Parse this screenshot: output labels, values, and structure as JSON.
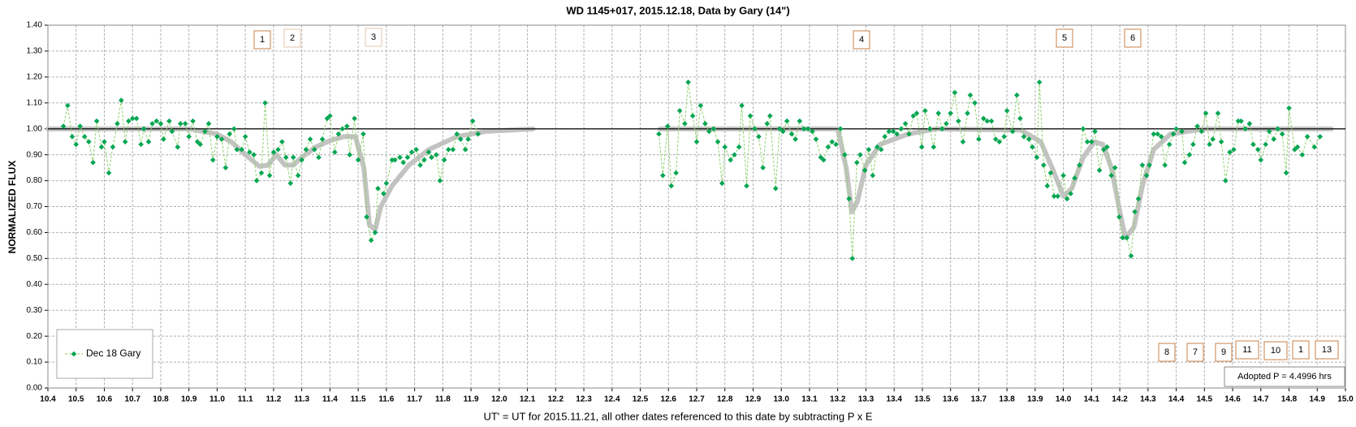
{
  "chart_data": {
    "type": "line",
    "title": "WD 1145+017, 2015.12.18, Data by Gary (14\")",
    "x_label": "UT' = UT for 2015.11.21, all other dates referenced to this date by subtracting P x E",
    "y_label": "NORMALIZED FLUX",
    "xlim": [
      10.4,
      15.0
    ],
    "ylim": [
      0,
      1.4
    ],
    "xticks": [
      10.4,
      10.5,
      10.6,
      10.7,
      10.8,
      10.9,
      {
        "value": 11,
        "label": "11.0"
      },
      11.1,
      11.2,
      11.3,
      11.4,
      11.5,
      11.6,
      11.7,
      11.8,
      11.9,
      {
        "value": 12,
        "label": "12.0"
      },
      12.1,
      12.2,
      12.3,
      12.4,
      12.5,
      12.6,
      12.7,
      12.8,
      12.9,
      {
        "value": 13,
        "label": "13.0"
      },
      13.1,
      13.2,
      13.3,
      13.4,
      13.5,
      13.6,
      13.7,
      13.8,
      13.9,
      {
        "value": 14,
        "label": "14.0"
      },
      14.1,
      14.2,
      14.3,
      14.4,
      14.5,
      14.6,
      14.7,
      14.8,
      14.9,
      {
        "value": 15,
        "label": "15.0"
      }
    ],
    "yticks": [
      {
        "value": 0,
        "label": "0.00"
      },
      {
        "value": 0.1,
        "label": "0.10"
      },
      {
        "value": 0.2,
        "label": "0.20"
      },
      {
        "value": 0.3,
        "label": "0.30"
      },
      {
        "value": 0.4,
        "label": "0.40"
      },
      {
        "value": 0.5,
        "label": "0.50"
      },
      {
        "value": 0.6,
        "label": "0.60"
      },
      {
        "value": 0.7,
        "label": "0.70"
      },
      {
        "value": 0.8,
        "label": "0.80"
      },
      {
        "value": 0.9,
        "label": "0.90"
      },
      {
        "value": 1,
        "label": "1.00"
      },
      {
        "value": 1.1,
        "label": "1.10"
      },
      {
        "value": 1.2,
        "label": "1.20"
      },
      {
        "value": 1.3,
        "label": "1.30"
      },
      {
        "value": 1.4,
        "label": "1.40"
      }
    ],
    "grid": true,
    "reference_line": 1,
    "legend": "bottom-left",
    "x": [
      10.455,
      10.47,
      10.486,
      10.5,
      10.514,
      10.53,
      10.545,
      10.56,
      10.573,
      10.59,
      10.6,
      10.616,
      10.63,
      10.646,
      10.66,
      10.674,
      10.686,
      10.7,
      10.714,
      10.73,
      10.74,
      10.757,
      10.77,
      10.785,
      10.8,
      10.81,
      10.83,
      10.84,
      10.86,
      10.87,
      10.887,
      10.9,
      10.914,
      10.93,
      10.94,
      10.957,
      10.97,
      10.985,
      11.0,
      11.016,
      11.03,
      11.044,
      11.06,
      11.07,
      11.087,
      11.1,
      11.115,
      11.13,
      11.14,
      11.157,
      11.17,
      11.186,
      11.2,
      11.216,
      11.23,
      11.244,
      11.26,
      11.27,
      11.287,
      11.3,
      11.315,
      11.33,
      11.345,
      11.36,
      11.373,
      11.39,
      11.4,
      11.417,
      11.43,
      11.444,
      11.46,
      11.47,
      11.487,
      11.5,
      11.518,
      11.53,
      11.546,
      11.56,
      11.57,
      11.59,
      11.6,
      11.62,
      11.63,
      11.648,
      11.66,
      11.675,
      11.69,
      11.706,
      11.72,
      11.734,
      11.75,
      11.76,
      11.777,
      11.79,
      11.805,
      11.82,
      11.836,
      11.85,
      11.863,
      11.88,
      11.89,
      11.906,
      11.925,
      null,
      12.566,
      12.58,
      12.597,
      12.61,
      12.627,
      12.64,
      12.658,
      12.67,
      12.686,
      12.7,
      12.714,
      12.73,
      12.744,
      12.76,
      12.775,
      12.79,
      12.8,
      12.82,
      12.834,
      12.85,
      12.86,
      12.877,
      12.89,
      12.906,
      12.92,
      12.935,
      12.95,
      12.96,
      12.98,
      12.994,
      13.006,
      13.02,
      13.037,
      13.05,
      13.065,
      13.08,
      13.095,
      13.11,
      13.123,
      13.14,
      13.15,
      13.166,
      13.18,
      13.194,
      13.21,
      13.225,
      13.24,
      13.252,
      13.268,
      13.28,
      13.296,
      13.31,
      13.324,
      13.34,
      13.354,
      13.367,
      13.382,
      13.397,
      13.41,
      13.425,
      13.44,
      13.453,
      13.468,
      13.48,
      13.498,
      13.51,
      13.527,
      13.54,
      13.557,
      13.57,
      13.585,
      13.6,
      13.615,
      13.628,
      13.644,
      13.66,
      13.67,
      13.686,
      13.7,
      13.717,
      13.73,
      13.745,
      13.76,
      13.773,
      13.79,
      13.8,
      13.82,
      13.835,
      13.847,
      13.86,
      13.878,
      13.89,
      13.906,
      13.915,
      13.93,
      13.943,
      13.955,
      13.967,
      13.98,
      14.0,
      14.013,
      14.026,
      14.04,
      14.057,
      14.07,
      14.085,
      14.1,
      14.112,
      14.128,
      14.143,
      14.155,
      14.17,
      14.183,
      14.198,
      14.21,
      14.225,
      14.24,
      14.253,
      14.266,
      14.28,
      14.295,
      14.305,
      14.32,
      14.334,
      14.347,
      14.36,
      14.376,
      14.39,
      14.4,
      14.42,
      14.43,
      14.447,
      14.46,
      14.475,
      14.49,
      14.505,
      14.518,
      14.53,
      14.548,
      14.56,
      14.575,
      14.59,
      14.604,
      14.62,
      14.63,
      14.645,
      14.66,
      14.673,
      14.69,
      14.7,
      14.717,
      14.73,
      14.746,
      14.76,
      14.776,
      14.79,
      14.8,
      14.82,
      14.83,
      14.847,
      14.865,
      14.89,
      14.91
    ],
    "series": [
      {
        "name": "Dec 18 Gary",
        "color": "#00a651",
        "line_color": "#8fd16f",
        "values": [
          1.01,
          1.09,
          0.97,
          0.94,
          1.01,
          0.97,
          0.95,
          0.87,
          1.03,
          0.93,
          0.95,
          0.83,
          0.93,
          1.02,
          1.11,
          0.95,
          1.03,
          1.04,
          1.04,
          0.94,
          1.0,
          0.95,
          1.02,
          1.03,
          1.02,
          0.96,
          1.03,
          0.99,
          0.93,
          1.02,
          1.02,
          0.97,
          1.03,
          0.95,
          0.94,
          0.99,
          1.02,
          0.88,
          0.97,
          0.96,
          0.85,
          0.98,
          1.0,
          0.92,
          0.92,
          0.97,
          0.91,
          0.9,
          0.8,
          0.83,
          1.1,
          0.82,
          0.91,
          0.92,
          0.95,
          0.89,
          0.79,
          0.89,
          0.82,
          0.88,
          0.92,
          0.96,
          0.92,
          0.89,
          0.96,
          1.04,
          1.05,
          0.91,
          0.98,
          1.0,
          1.01,
          0.9,
          1.04,
          0.88,
          0.98,
          0.66,
          0.57,
          0.6,
          0.77,
          0.75,
          0.79,
          0.88,
          0.88,
          0.89,
          0.87,
          0.89,
          0.91,
          0.92,
          0.86,
          0.88,
          0.91,
          0.89,
          0.9,
          0.8,
          0.88,
          0.92,
          0.92,
          0.98,
          0.96,
          0.92,
          0.96,
          1.03,
          0.98,
          null,
          0.98,
          0.82,
          1.01,
          0.78,
          0.83,
          1.07,
          1.02,
          1.18,
          1.05,
          0.95,
          1.09,
          1.02,
          0.99,
          1.0,
          0.95,
          0.79,
          0.93,
          0.88,
          0.9,
          0.93,
          1.09,
          0.78,
          1.05,
          1.0,
          0.97,
          0.85,
          1.02,
          1.05,
          0.77,
          1.0,
          0.99,
          1.03,
          0.98,
          0.96,
          1.03,
          1.0,
          1.0,
          0.99,
          0.96,
          0.89,
          0.88,
          0.93,
          0.95,
          0.94,
          1.0,
          0.9,
          0.73,
          0.5,
          0.87,
          0.9,
          0.84,
          0.92,
          0.82,
          0.93,
          0.92,
          0.97,
          0.99,
          0.99,
          0.98,
          1.0,
          1.02,
          0.98,
          1.05,
          1.06,
          0.93,
          1.07,
          1.0,
          0.93,
          1.06,
          1.0,
          1.02,
          1.06,
          1.14,
          1.03,
          0.95,
          1.06,
          1.13,
          1.1,
          0.96,
          1.04,
          1.03,
          1.03,
          0.96,
          0.95,
          0.97,
          1.07,
          0.99,
          1.13,
          1.04,
          0.97,
          0.96,
          0.93,
          0.89,
          1.18,
          0.86,
          0.78,
          0.83,
          0.74,
          0.74,
          0.82,
          0.73,
          0.75,
          0.81,
          0.86,
          1.0,
          0.95,
          0.95,
          0.99,
          0.84,
          0.92,
          0.93,
          0.82,
          0.85,
          0.66,
          0.58,
          0.58,
          0.51,
          0.68,
          0.73,
          0.86,
          0.82,
          0.86,
          0.98,
          0.98,
          0.97,
          0.86,
          0.94,
          0.98,
          1.0,
          0.99,
          0.87,
          0.9,
          0.94,
          1.01,
          0.99,
          1.06,
          0.94,
          0.96,
          1.06,
          0.95,
          0.8,
          0.91,
          0.92,
          1.03,
          1.03,
          1.0,
          1.02,
          0.94,
          0.92,
          0.88,
          0.94,
          0.99,
          0.96,
          1.0,
          0.98,
          0.83,
          1.08,
          0.92,
          0.93,
          0.9,
          0.97,
          0.93,
          0.97
        ]
      },
      {
        "color": "#bdbdbb",
        "x": [
          10.4,
          10.9,
          11.0,
          11.05,
          11.1,
          11.15,
          11.18,
          11.21,
          11.24,
          11.27,
          11.3,
          11.35,
          11.4,
          11.45,
          11.49,
          11.52,
          11.54,
          11.56,
          11.58,
          11.62,
          11.68,
          11.75,
          11.85,
          11.95,
          12.12,
          null,
          12.57,
          13.2,
          13.23,
          13.25,
          13.27,
          13.3,
          13.35,
          13.45,
          13.55,
          13.85,
          13.92,
          13.96,
          14.0,
          14.03,
          14.07,
          14.11,
          14.14,
          14.17,
          14.2,
          14.22,
          14.25,
          14.28,
          14.32,
          14.38,
          14.5,
          14.95
        ],
        "values": [
          1.0,
          1.0,
          0.98,
          0.95,
          0.9,
          0.855,
          0.86,
          0.9,
          0.86,
          0.86,
          0.89,
          0.93,
          0.955,
          0.97,
          0.97,
          0.85,
          0.63,
          0.61,
          0.7,
          0.78,
          0.86,
          0.92,
          0.97,
          0.99,
          1.0,
          null,
          1.0,
          1.0,
          0.85,
          0.68,
          0.72,
          0.86,
          0.94,
          0.98,
          1.0,
          0.995,
          0.95,
          0.85,
          0.74,
          0.77,
          0.89,
          0.95,
          0.94,
          0.85,
          0.68,
          0.58,
          0.62,
          0.78,
          0.92,
          0.98,
          1.0,
          1.0
        ]
      }
    ],
    "annotations": [
      "1",
      "2",
      "3",
      "4",
      "5",
      "6",
      "8",
      "7",
      "9",
      "11",
      "10",
      "1",
      "13",
      "Adopted P = 4.4996 hrs"
    ]
  }
}
